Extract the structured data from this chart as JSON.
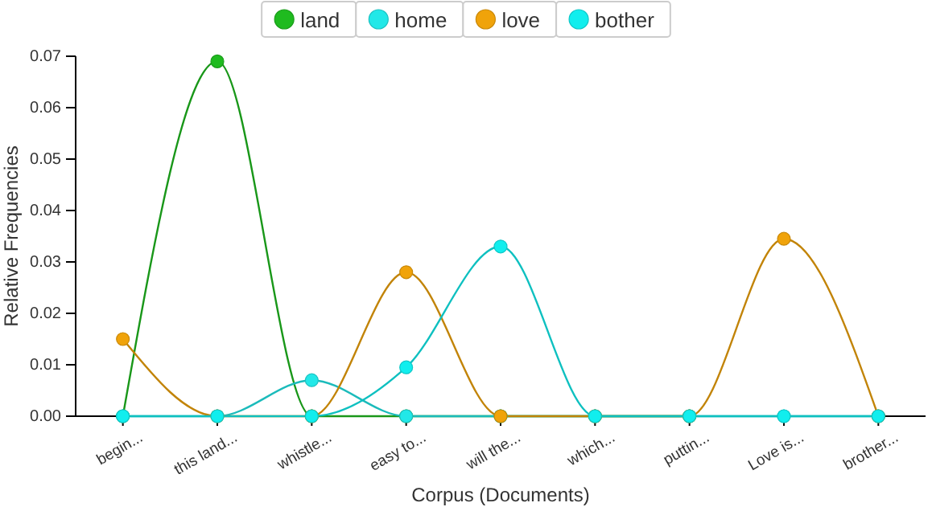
{
  "chart_data": {
    "type": "line",
    "xlabel": "Corpus (Documents)",
    "ylabel": "Relative Frequencies",
    "categories": [
      "begin...",
      "this land...",
      "whistle...",
      "easy to...",
      "will the...",
      "which...",
      "puttin...",
      "Love is...",
      "brother..."
    ],
    "series": [
      {
        "name": "land",
        "color": "#1fbb1f",
        "values": [
          0,
          0.069,
          0,
          0,
          0,
          0,
          0,
          null,
          null
        ]
      },
      {
        "name": "home",
        "color": "#22e8e8",
        "values": [
          0,
          0,
          0.007,
          0,
          0,
          0,
          0,
          0,
          0
        ]
      },
      {
        "name": "love",
        "color": "#f0a30a",
        "values": [
          0.015,
          0,
          0,
          0.028,
          0,
          0,
          0,
          0.0345,
          0
        ]
      },
      {
        "name": "bother",
        "color": "#11eeee",
        "values": [
          0,
          0,
          0,
          0.0095,
          0.033,
          0,
          0,
          0,
          0
        ]
      }
    ],
    "ylim": [
      0,
      0.07
    ],
    "yticks": [
      {
        "value": 0,
        "label": "0.00"
      },
      0.01,
      0.02,
      0.03,
      0.04,
      0.05,
      0.06,
      0.07
    ],
    "legend": "top",
    "marker": "circle",
    "grid": false
  }
}
